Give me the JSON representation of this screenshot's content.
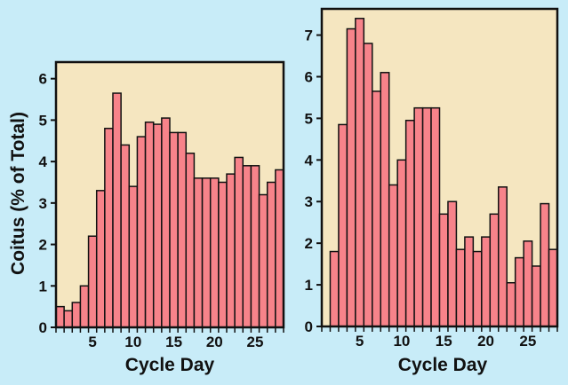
{
  "colors": {
    "background": "#c8ecf8",
    "plot_bg": "#f5e6c0",
    "bar": "#f7838a",
    "stroke": "#111111"
  },
  "chart_data": [
    {
      "type": "bar",
      "title": "",
      "xlabel": "Cycle Day",
      "ylabel": "Coitus (% of Total)",
      "categories": [
        1,
        2,
        3,
        4,
        5,
        6,
        7,
        8,
        9,
        10,
        11,
        12,
        13,
        14,
        15,
        16,
        17,
        18,
        19,
        20,
        21,
        22,
        23,
        24,
        25,
        26,
        27,
        28
      ],
      "values": [
        0.5,
        0.4,
        0.6,
        1.0,
        2.2,
        3.3,
        4.8,
        5.65,
        4.4,
        3.4,
        4.6,
        4.95,
        4.9,
        5.05,
        4.7,
        4.7,
        4.2,
        3.6,
        3.6,
        3.6,
        3.5,
        3.7,
        4.1,
        3.9,
        3.9,
        3.2,
        3.5,
        3.8
      ],
      "xticks": [
        "5",
        "10",
        "15",
        "20",
        "25"
      ],
      "yticks": [
        "0",
        "1",
        "2",
        "3",
        "4",
        "5",
        "6"
      ],
      "ylim": [
        0,
        6.4
      ],
      "grid": false
    },
    {
      "type": "bar",
      "title": "",
      "xlabel": "Cycle Day",
      "ylabel": "",
      "categories": [
        1,
        2,
        3,
        4,
        5,
        6,
        7,
        8,
        9,
        10,
        11,
        12,
        13,
        14,
        15,
        16,
        17,
        18,
        19,
        20,
        21,
        22,
        23,
        24,
        25,
        26,
        27,
        28
      ],
      "values": [
        0,
        1.8,
        4.85,
        7.15,
        7.4,
        6.8,
        5.65,
        6.1,
        3.4,
        4.0,
        4.95,
        5.25,
        5.25,
        5.25,
        2.7,
        3.0,
        1.85,
        2.15,
        1.8,
        2.15,
        2.7,
        3.35,
        1.05,
        1.65,
        2.05,
        1.45,
        2.95,
        1.85
      ],
      "xticks": [
        "5",
        "10",
        "15",
        "20",
        "25"
      ],
      "yticks": [
        "0",
        "1",
        "2",
        "3",
        "4",
        "5",
        "6",
        "7"
      ],
      "ylim": [
        0,
        7.63
      ],
      "grid": false
    }
  ]
}
